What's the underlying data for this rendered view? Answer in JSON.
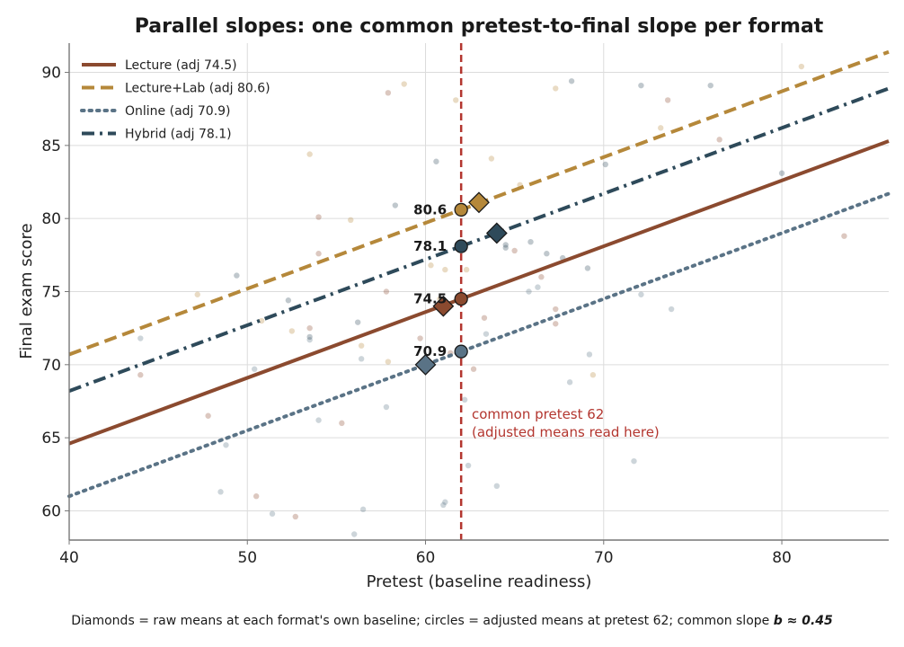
{
  "chart_data": {
    "type": "line",
    "title": "Parallel slopes: one common pretest-to-final slope per format",
    "xlabel": "Pretest (baseline readiness)",
    "ylabel": "Final exam score",
    "xlim": [
      40,
      86
    ],
    "ylim": [
      58,
      92
    ],
    "xticks": [
      40,
      50,
      60,
      70,
      80
    ],
    "yticks": [
      60,
      65,
      70,
      75,
      80,
      85,
      90
    ],
    "grid": true,
    "legend_position": "top-left",
    "common_slope": 0.45,
    "common_pretest": 62,
    "annotation": [
      "common pretest 62",
      "(adjusted means read here)"
    ],
    "footnote_text": "Diamonds = raw means at each format's own baseline; circles = adjusted means at pretest 62; common slope",
    "footnote_math": "b ≈ 0.45",
    "series": [
      {
        "name": "Lecture (adj 74.5)",
        "color": "#8b4a2f",
        "dash": "solid",
        "intercept_x": 40,
        "intercept_y": 64.6,
        "slope": 0.45,
        "adjusted_mean": 74.5,
        "adjusted_label": "74.5",
        "raw_mean": {
          "x": 61,
          "y": 74.0
        },
        "points": [
          [
            44,
            69.3
          ],
          [
            47.8,
            66.5
          ],
          [
            50.5,
            61
          ],
          [
            52.7,
            59.6
          ],
          [
            53.5,
            72.5
          ],
          [
            54,
            77.6
          ],
          [
            55.3,
            66
          ],
          [
            57.8,
            75
          ],
          [
            59.7,
            71.8
          ],
          [
            61.4,
            70.8
          ],
          [
            62.7,
            69.7
          ],
          [
            63.3,
            73.2
          ],
          [
            65,
            77.8
          ],
          [
            66.5,
            76
          ],
          [
            67.3,
            72.8
          ],
          [
            67.3,
            73.8
          ],
          [
            73.6,
            88.1
          ],
          [
            76.5,
            85.4
          ],
          [
            83.5,
            78.8
          ],
          [
            54,
            80.1
          ],
          [
            57.9,
            88.6
          ]
        ]
      },
      {
        "name": "Lecture+Lab (adj 80.6)",
        "color": "#b5883a",
        "dash": "dashed",
        "intercept_x": 40,
        "intercept_y": 70.7,
        "slope": 0.45,
        "adjusted_mean": 80.6,
        "adjusted_label": "80.6",
        "raw_mean": {
          "x": 63,
          "y": 81.1
        },
        "points": [
          [
            47.2,
            74.8
          ],
          [
            50.8,
            73
          ],
          [
            52.5,
            72.3
          ],
          [
            53.5,
            84.4
          ],
          [
            55.8,
            79.9
          ],
          [
            56.4,
            71.3
          ],
          [
            57.9,
            70.2
          ],
          [
            58.8,
            89.2
          ],
          [
            60.8,
            74.5
          ],
          [
            60.3,
            76.8
          ],
          [
            61.1,
            76.5
          ],
          [
            61.7,
            88.1
          ],
          [
            62.3,
            76.5
          ],
          [
            63.7,
            84.1
          ],
          [
            65.3,
            82.3
          ],
          [
            67.3,
            88.9
          ],
          [
            69.4,
            69.3
          ],
          [
            73.2,
            86.2
          ],
          [
            81.1,
            90.4
          ],
          [
            63,
            80.9
          ]
        ]
      },
      {
        "name": "Online (adj 70.9)",
        "color": "#5a7386",
        "dash": "dotted",
        "intercept_x": 40,
        "intercept_y": 61.0,
        "slope": 0.45,
        "adjusted_mean": 70.9,
        "adjusted_label": "70.9",
        "raw_mean": {
          "x": 60,
          "y": 70.0
        },
        "points": [
          [
            44,
            71.8
          ],
          [
            48.5,
            61.3
          ],
          [
            48.8,
            64.5
          ],
          [
            50.4,
            69.7
          ],
          [
            51.4,
            59.8
          ],
          [
            53.5,
            71.7
          ],
          [
            54,
            66.2
          ],
          [
            56,
            58.4
          ],
          [
            56.4,
            70.4
          ],
          [
            56.5,
            60.1
          ],
          [
            57.8,
            67.1
          ],
          [
            61.1,
            60.6
          ],
          [
            61,
            60.4
          ],
          [
            62.2,
            67.6
          ],
          [
            62.4,
            63.1
          ],
          [
            63.4,
            72.1
          ],
          [
            64,
            61.7
          ],
          [
            65.8,
            75
          ],
          [
            66.3,
            75.3
          ],
          [
            68.1,
            68.8
          ],
          [
            69.2,
            70.7
          ],
          [
            71.7,
            63.4
          ],
          [
            72.1,
            74.8
          ],
          [
            73.8,
            73.8
          ]
        ]
      },
      {
        "name": "Hybrid (adj 78.1)",
        "color": "#2e4a5a",
        "dash": "dashdot",
        "intercept_x": 40,
        "intercept_y": 68.2,
        "slope": 0.45,
        "adjusted_mean": 78.1,
        "adjusted_label": "78.1",
        "raw_mean": {
          "x": 64,
          "y": 79.0
        },
        "points": [
          [
            49.4,
            76.1
          ],
          [
            52.3,
            74.4
          ],
          [
            53.5,
            71.9
          ],
          [
            56.2,
            72.9
          ],
          [
            58.3,
            80.9
          ],
          [
            60.6,
            83.9
          ],
          [
            64.5,
            78
          ],
          [
            65.9,
            78.4
          ],
          [
            66.8,
            77.6
          ],
          [
            67.7,
            77.3
          ],
          [
            68.2,
            89.4
          ],
          [
            69.1,
            76.6
          ],
          [
            70.1,
            83.7
          ],
          [
            72.1,
            89.1
          ],
          [
            76,
            89.1
          ],
          [
            80,
            83.1
          ],
          [
            64.5,
            78.2
          ]
        ]
      }
    ]
  }
}
